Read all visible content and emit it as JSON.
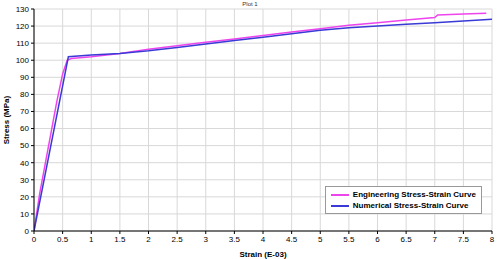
{
  "chart_data": {
    "type": "line",
    "title": "Plot 1",
    "x_label": "Strain (E-03)",
    "y_label": "Stress (MPa)",
    "xlim": [
      0,
      8
    ],
    "xticks": [
      0,
      0.5,
      1,
      1.5,
      2,
      2.5,
      3,
      3.5,
      4,
      4.5,
      5,
      5.5,
      6,
      6.5,
      7,
      7.5,
      8
    ],
    "ylim": [
      0,
      130
    ],
    "yticks": [
      0,
      10,
      20,
      30,
      40,
      50,
      60,
      70,
      80,
      90,
      100,
      110,
      120,
      130
    ],
    "grid": true,
    "legend": "lower right",
    "series": [
      {
        "name": "Engineering Stress-Strain Curve",
        "color": "#ee44ee",
        "marker": "none",
        "line_style": "solid",
        "x": [
          0,
          0.1,
          0.2,
          0.3,
          0.4,
          0.5,
          0.58,
          0.65,
          1,
          1.5,
          2,
          2.5,
          3,
          3.5,
          4,
          4.5,
          5,
          5.5,
          6,
          6.5,
          7,
          7.05,
          7.5,
          7.9
        ],
        "values": [
          0,
          22,
          40,
          58,
          76,
          92,
          100,
          101,
          102,
          104,
          106.5,
          108.5,
          110.5,
          112.5,
          114.5,
          116.5,
          118.5,
          120.5,
          122,
          123.5,
          125,
          126.5,
          127,
          127.5
        ]
      },
      {
        "name": "Numerical Stress-Strain Curve",
        "color": "#3a3ad6",
        "marker": "none",
        "line_style": "solid",
        "x": [
          0,
          0.6,
          1,
          1.5,
          2,
          2.5,
          3,
          3.5,
          4,
          4.5,
          5,
          5.5,
          6,
          6.5,
          7,
          7.5,
          8
        ],
        "values": [
          0,
          102,
          103,
          104,
          105.5,
          107.5,
          109.5,
          111.5,
          113.5,
          115.5,
          117.5,
          119,
          120,
          121,
          122,
          123,
          124
        ]
      }
    ]
  }
}
